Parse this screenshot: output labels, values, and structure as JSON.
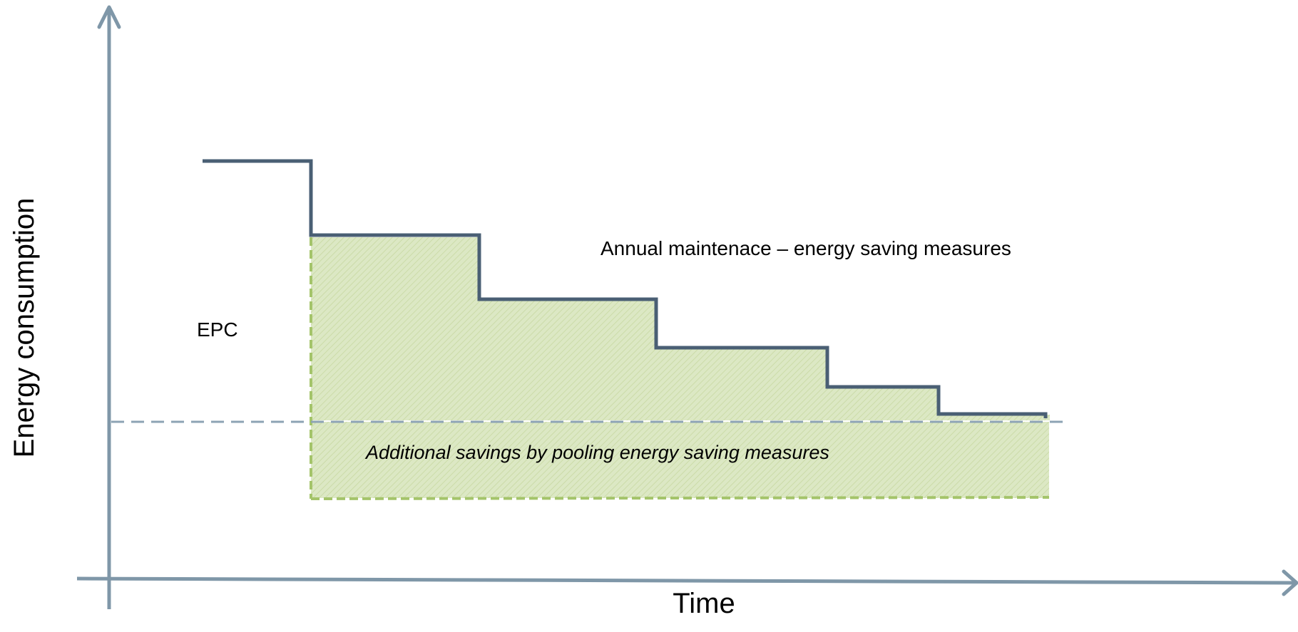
{
  "diagram": {
    "y_axis_label": "Energy consumption",
    "x_axis_label": "Time",
    "epc_label": "EPC",
    "maintenance_label": "Annual maintenace – energy saving measures",
    "pooling_label": "Additional savings by pooling energy saving measures",
    "colors": {
      "axis": "#7f97a8",
      "step_line": "#4a5f74",
      "savings_fill": "#dce8c4",
      "savings_hatch": "#cbdba8",
      "savings_border": "#a4c46a",
      "baseline_dash": "#8da3b4",
      "text": "#000000"
    }
  }
}
